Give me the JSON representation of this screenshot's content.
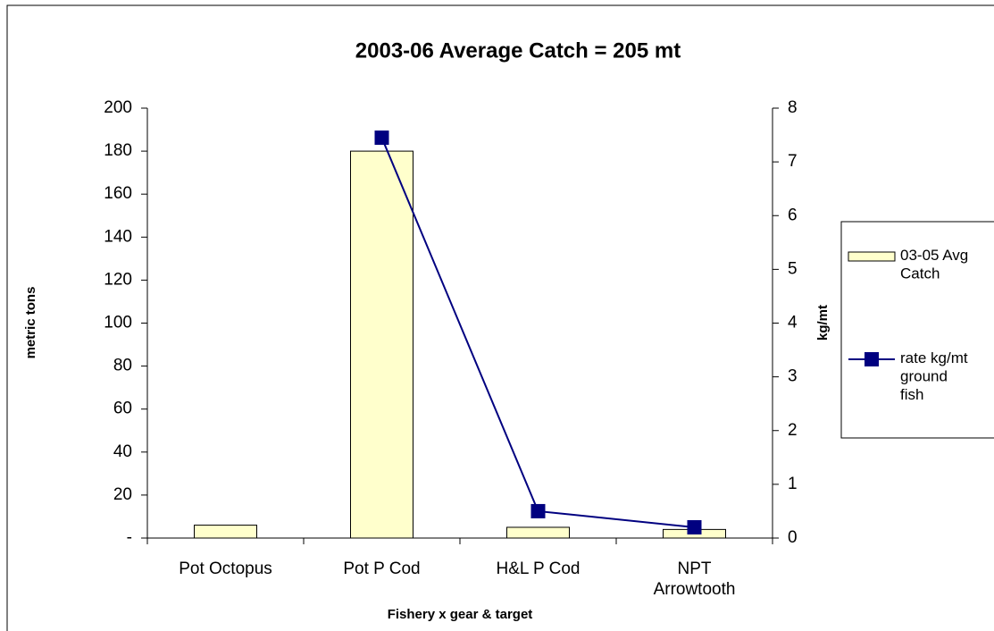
{
  "chart_data": {
    "type": "bar",
    "title": "2003-06 Average Catch =  205 mt",
    "x_label": "Fishery x gear & target",
    "y_label": "metric tons",
    "y2_label": "kg/mt",
    "categories": [
      "Pot Octopus",
      "Pot P Cod",
      "H&L P Cod",
      "NPT Arrowtooth"
    ],
    "series": [
      {
        "name": "03-05 Avg Catch",
        "type": "bar",
        "color": "#ffffcc",
        "values": [
          6,
          180,
          5,
          4
        ]
      },
      {
        "name": "rate kg/mt ground fish",
        "type": "line",
        "axis": "y2",
        "color": "#000080",
        "values": [
          null,
          7.45,
          0.5,
          0.2
        ]
      }
    ],
    "ylim": [
      0,
      200
    ],
    "yticks": [
      {
        "value": 0,
        "label": "-"
      },
      20,
      40,
      60,
      80,
      100,
      120,
      140,
      160,
      180,
      200
    ],
    "y2lim": [
      0,
      8
    ],
    "y2ticks": [
      0,
      1,
      2,
      3,
      4,
      5,
      6,
      7,
      8
    ],
    "grid": false,
    "legend": "right"
  }
}
